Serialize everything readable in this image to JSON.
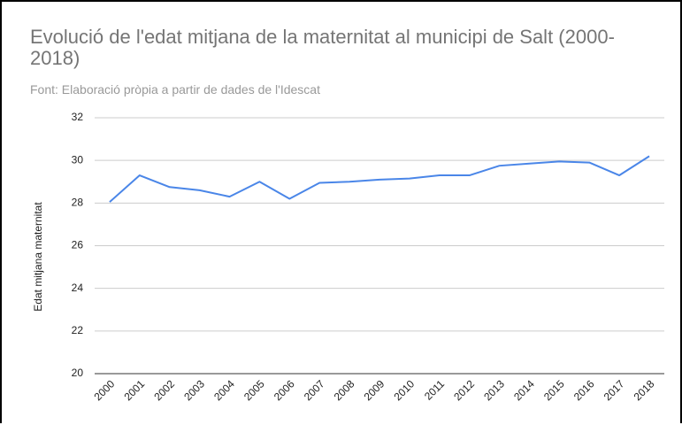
{
  "chart_data": {
    "type": "line",
    "title": "Evolució de l'edat mitjana de la maternitat al municipi de Salt (2000-2018)",
    "subtitle": "Font: Elaboració pròpia a partir de dades de l'Idescat",
    "y_label": "Edat mitjana maternitat",
    "categories": [
      "2000",
      "2001",
      "2002",
      "2003",
      "2004",
      "2005",
      "2006",
      "2007",
      "2008",
      "2009",
      "2010",
      "2011",
      "2012",
      "2013",
      "2014",
      "2015",
      "2016",
      "2017",
      "2018"
    ],
    "values": [
      28.05,
      29.3,
      28.75,
      28.6,
      28.3,
      29.0,
      28.2,
      28.95,
      29.0,
      29.1,
      29.15,
      29.3,
      29.3,
      29.75,
      29.85,
      29.95,
      29.9,
      29.3,
      30.2
    ],
    "color": "#4a86e8",
    "ylim": [
      20,
      32
    ],
    "yticks": [
      20,
      22,
      24,
      26,
      28,
      30,
      32
    ],
    "grid": true
  }
}
